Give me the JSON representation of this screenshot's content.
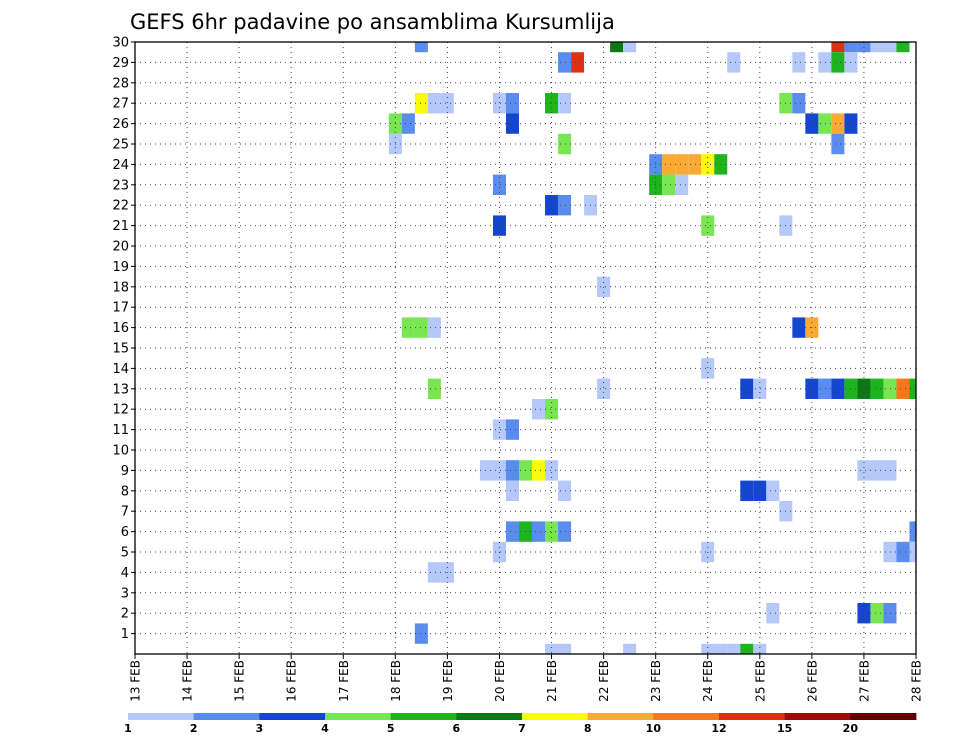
{
  "chart_data": {
    "type": "heatmap",
    "title": "GEFS 6hr padavine po ansamblima Kursumlija",
    "xlabel": "",
    "ylabel": "",
    "x_ticks": [
      "13 FEB",
      "14 FEB",
      "15 FEB",
      "16 FEB",
      "17 FEB",
      "18 FEB",
      "19 FEB",
      "20 FEB",
      "21 FEB",
      "22 FEB",
      "23 FEB",
      "24 FEB",
      "25 FEB",
      "26 FEB",
      "27 FEB",
      "28 FEB"
    ],
    "x_range": [
      0,
      15
    ],
    "y_ticks": [
      1,
      2,
      3,
      4,
      5,
      6,
      7,
      8,
      9,
      10,
      11,
      12,
      13,
      14,
      15,
      16,
      17,
      18,
      19,
      20,
      21,
      22,
      23,
      24,
      25,
      26,
      27,
      28,
      29,
      30
    ],
    "y_range": [
      0,
      30
    ],
    "grid": true,
    "levels": {
      "labels": [
        "1",
        "2",
        "3",
        "4",
        "5",
        "6",
        "7",
        "8",
        "10",
        "12",
        "15",
        "20"
      ],
      "colors": [
        "#b4c8fa",
        "#5a8cf0",
        "#1446d2",
        "#78e650",
        "#1eb41e",
        "#0a7814",
        "#fafa0a",
        "#faaa32",
        "#f5781e",
        "#dc3214",
        "#a00a0a",
        "#640000"
      ]
    },
    "cells": [
      [
        5.5,
        30,
        1
      ],
      [
        9.25,
        30,
        5
      ],
      [
        9.5,
        30,
        0
      ],
      [
        13.5,
        30,
        9
      ],
      [
        13.75,
        30,
        1
      ],
      [
        14,
        30,
        1
      ],
      [
        14.25,
        30,
        0
      ],
      [
        14.5,
        30,
        0
      ],
      [
        14.75,
        30,
        4
      ],
      [
        8.25,
        29,
        1
      ],
      [
        8.5,
        29,
        9
      ],
      [
        11.5,
        29,
        0
      ],
      [
        12.75,
        29,
        0
      ],
      [
        13.25,
        29,
        0
      ],
      [
        13.5,
        29,
        4
      ],
      [
        13.75,
        29,
        0
      ],
      [
        5.5,
        27,
        6
      ],
      [
        5.75,
        27,
        0
      ],
      [
        6,
        27,
        0
      ],
      [
        7,
        27,
        0
      ],
      [
        7.25,
        27,
        1
      ],
      [
        8,
        27,
        4
      ],
      [
        8.25,
        27,
        0
      ],
      [
        12.5,
        27,
        3
      ],
      [
        12.75,
        27,
        1
      ],
      [
        5,
        26,
        3
      ],
      [
        5.25,
        26,
        1
      ],
      [
        7.25,
        26,
        2
      ],
      [
        13,
        26,
        2
      ],
      [
        13.25,
        26,
        3
      ],
      [
        13.5,
        26,
        7
      ],
      [
        13.75,
        26,
        2
      ],
      [
        5,
        25,
        0
      ],
      [
        8.25,
        25,
        3
      ],
      [
        13.5,
        25,
        1
      ],
      [
        10,
        24,
        1
      ],
      [
        10.25,
        24,
        7
      ],
      [
        10.5,
        24,
        7
      ],
      [
        10.75,
        24,
        7
      ],
      [
        11,
        24,
        6
      ],
      [
        11.25,
        24,
        4
      ],
      [
        7,
        23,
        1
      ],
      [
        10,
        23,
        4
      ],
      [
        10.25,
        23,
        3
      ],
      [
        10.5,
        23,
        0
      ],
      [
        8,
        22,
        2
      ],
      [
        8.25,
        22,
        1
      ],
      [
        8.75,
        22,
        0
      ],
      [
        7,
        21,
        2
      ],
      [
        11,
        21,
        3
      ],
      [
        12.5,
        21,
        0
      ],
      [
        9,
        18,
        0
      ],
      [
        5.25,
        16,
        3
      ],
      [
        5.5,
        16,
        3
      ],
      [
        5.75,
        16,
        0
      ],
      [
        12.75,
        16,
        2
      ],
      [
        13,
        16,
        7
      ],
      [
        11,
        14,
        0
      ],
      [
        5.75,
        13,
        3
      ],
      [
        9,
        13,
        0
      ],
      [
        11.75,
        13,
        2
      ],
      [
        12,
        13,
        0
      ],
      [
        13,
        13,
        2
      ],
      [
        13.25,
        13,
        1
      ],
      [
        13.5,
        13,
        2
      ],
      [
        13.75,
        13,
        4
      ],
      [
        14,
        13,
        5
      ],
      [
        14.25,
        13,
        4
      ],
      [
        14.5,
        13,
        3
      ],
      [
        14.75,
        13,
        8
      ],
      [
        15,
        13,
        4
      ],
      [
        7.75,
        12,
        0
      ],
      [
        8,
        12,
        3
      ],
      [
        7,
        11,
        0
      ],
      [
        7.25,
        11,
        1
      ],
      [
        6.75,
        9,
        0
      ],
      [
        7,
        9,
        0
      ],
      [
        7.25,
        9,
        1
      ],
      [
        7.5,
        9,
        3
      ],
      [
        7.75,
        9,
        6
      ],
      [
        8,
        9,
        0
      ],
      [
        14,
        9,
        0
      ],
      [
        14.25,
        9,
        0
      ],
      [
        14.5,
        9,
        0
      ],
      [
        7.25,
        8,
        0
      ],
      [
        8.25,
        8,
        0
      ],
      [
        11.75,
        8,
        2
      ],
      [
        12,
        8,
        2
      ],
      [
        12.25,
        8,
        0
      ],
      [
        12.5,
        7,
        0
      ],
      [
        7.25,
        6,
        1
      ],
      [
        7.5,
        6,
        4
      ],
      [
        7.75,
        6,
        1
      ],
      [
        8,
        6,
        3
      ],
      [
        8.25,
        6,
        1
      ],
      [
        15,
        6,
        1
      ],
      [
        7,
        5,
        0
      ],
      [
        11,
        5,
        0
      ],
      [
        14.5,
        5,
        0
      ],
      [
        14.75,
        5,
        1
      ],
      [
        15,
        5,
        0
      ],
      [
        5.75,
        4,
        0
      ],
      [
        6,
        4,
        0
      ],
      [
        12.25,
        2,
        0
      ],
      [
        14,
        2,
        2
      ],
      [
        14.25,
        2,
        3
      ],
      [
        14.5,
        2,
        1
      ],
      [
        5.5,
        1,
        1
      ],
      [
        8,
        0,
        0
      ],
      [
        8.25,
        0,
        0
      ],
      [
        9.5,
        0,
        0
      ],
      [
        11,
        0,
        0
      ],
      [
        11.25,
        0,
        0
      ],
      [
        11.5,
        0,
        0
      ],
      [
        11.75,
        0,
        4
      ],
      [
        12,
        0,
        0
      ]
    ]
  }
}
